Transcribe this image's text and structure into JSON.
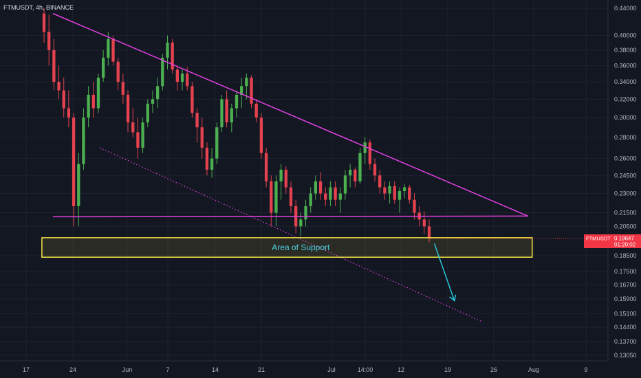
{
  "chart_data": {
    "type": "candlestick",
    "symbol_line": "FTMUSDT, 4h, BINANCE",
    "price_axis": {
      "scale": "log",
      "ticks": [
        "0.44000",
        "0.40000",
        "0.38000",
        "0.36000",
        "0.34000",
        "0.32000",
        "0.30000",
        "0.28000",
        "0.26000",
        "0.24500",
        "0.23000",
        "0.21500",
        "0.20500",
        "0.18500",
        "0.17500",
        "0.16700",
        "0.15900",
        "0.15100",
        "0.14400",
        "0.13700",
        "0.13050"
      ],
      "current_price_label": {
        "symbol": "FTMUSDT",
        "price": "0.19647",
        "countdown": "01:20:02",
        "color": "#f23645"
      }
    },
    "time_axis": {
      "ticks": [
        "17",
        "24",
        "Jun",
        "7",
        "14",
        "21",
        "Jul",
        "14:00",
        "12",
        "19",
        "26",
        "Aug",
        "9"
      ]
    },
    "colors": {
      "up": "#4caf50",
      "down": "#e5424f",
      "trendline": "#e040e0",
      "support_box": "#f5e642",
      "arrow": "#26c6da",
      "grid": "#1e2230"
    },
    "candles_ohlc": [
      [
        0.432,
        0.44,
        0.39,
        0.405
      ],
      [
        0.405,
        0.43,
        0.36,
        0.38
      ],
      [
        0.38,
        0.395,
        0.33,
        0.34
      ],
      [
        0.34,
        0.36,
        0.32,
        0.33
      ],
      [
        0.33,
        0.345,
        0.3,
        0.31
      ],
      [
        0.31,
        0.33,
        0.29,
        0.3
      ],
      [
        0.3,
        0.305,
        0.205,
        0.22
      ],
      [
        0.22,
        0.265,
        0.205,
        0.255
      ],
      [
        0.255,
        0.31,
        0.25,
        0.3
      ],
      [
        0.3,
        0.335,
        0.29,
        0.325
      ],
      [
        0.325,
        0.34,
        0.3,
        0.31
      ],
      [
        0.31,
        0.35,
        0.305,
        0.345
      ],
      [
        0.345,
        0.38,
        0.34,
        0.37
      ],
      [
        0.37,
        0.405,
        0.36,
        0.395
      ],
      [
        0.395,
        0.4,
        0.36,
        0.365
      ],
      [
        0.365,
        0.37,
        0.33,
        0.34
      ],
      [
        0.34,
        0.35,
        0.315,
        0.325
      ],
      [
        0.325,
        0.33,
        0.285,
        0.295
      ],
      [
        0.295,
        0.31,
        0.28,
        0.285
      ],
      [
        0.285,
        0.3,
        0.26,
        0.27
      ],
      [
        0.27,
        0.3,
        0.265,
        0.295
      ],
      [
        0.295,
        0.32,
        0.29,
        0.315
      ],
      [
        0.315,
        0.33,
        0.305,
        0.32
      ],
      [
        0.32,
        0.345,
        0.31,
        0.335
      ],
      [
        0.335,
        0.375,
        0.33,
        0.37
      ],
      [
        0.37,
        0.4,
        0.355,
        0.39
      ],
      [
        0.39,
        0.395,
        0.35,
        0.355
      ],
      [
        0.355,
        0.36,
        0.33,
        0.34
      ],
      [
        0.34,
        0.355,
        0.33,
        0.35
      ],
      [
        0.35,
        0.358,
        0.33,
        0.335
      ],
      [
        0.335,
        0.34,
        0.3,
        0.305
      ],
      [
        0.305,
        0.31,
        0.275,
        0.29
      ],
      [
        0.29,
        0.3,
        0.26,
        0.27
      ],
      [
        0.27,
        0.275,
        0.245,
        0.25
      ],
      [
        0.25,
        0.27,
        0.243,
        0.26
      ],
      [
        0.26,
        0.295,
        0.255,
        0.29
      ],
      [
        0.29,
        0.325,
        0.285,
        0.32
      ],
      [
        0.32,
        0.33,
        0.29,
        0.295
      ],
      [
        0.295,
        0.315,
        0.285,
        0.31
      ],
      [
        0.31,
        0.33,
        0.3,
        0.325
      ],
      [
        0.325,
        0.345,
        0.31,
        0.335
      ],
      [
        0.335,
        0.35,
        0.32,
        0.345
      ],
      [
        0.345,
        0.348,
        0.31,
        0.315
      ],
      [
        0.315,
        0.32,
        0.295,
        0.3
      ],
      [
        0.3,
        0.305,
        0.26,
        0.265
      ],
      [
        0.265,
        0.27,
        0.235,
        0.24
      ],
      [
        0.24,
        0.245,
        0.205,
        0.215
      ],
      [
        0.215,
        0.245,
        0.205,
        0.24
      ],
      [
        0.24,
        0.255,
        0.225,
        0.25
      ],
      [
        0.25,
        0.253,
        0.23,
        0.235
      ],
      [
        0.235,
        0.24,
        0.215,
        0.22
      ],
      [
        0.22,
        0.225,
        0.2,
        0.205
      ],
      [
        0.205,
        0.215,
        0.198,
        0.21
      ],
      [
        0.21,
        0.225,
        0.205,
        0.22
      ],
      [
        0.22,
        0.235,
        0.215,
        0.23
      ],
      [
        0.23,
        0.245,
        0.225,
        0.24
      ],
      [
        0.24,
        0.248,
        0.225,
        0.23
      ],
      [
        0.23,
        0.235,
        0.22,
        0.225
      ],
      [
        0.225,
        0.24,
        0.22,
        0.235
      ],
      [
        0.235,
        0.24,
        0.22,
        0.225
      ],
      [
        0.225,
        0.235,
        0.215,
        0.23
      ],
      [
        0.23,
        0.25,
        0.225,
        0.245
      ],
      [
        0.245,
        0.255,
        0.235,
        0.25
      ],
      [
        0.25,
        0.252,
        0.235,
        0.24
      ],
      [
        0.24,
        0.27,
        0.238,
        0.265
      ],
      [
        0.265,
        0.28,
        0.255,
        0.275
      ],
      [
        0.275,
        0.278,
        0.25,
        0.255
      ],
      [
        0.255,
        0.26,
        0.24,
        0.245
      ],
      [
        0.245,
        0.25,
        0.23,
        0.235
      ],
      [
        0.235,
        0.24,
        0.225,
        0.23
      ],
      [
        0.23,
        0.24,
        0.222,
        0.236
      ],
      [
        0.236,
        0.24,
        0.222,
        0.225
      ],
      [
        0.225,
        0.235,
        0.215,
        0.232
      ],
      [
        0.232,
        0.238,
        0.226,
        0.235
      ],
      [
        0.235,
        0.237,
        0.222,
        0.225
      ],
      [
        0.225,
        0.23,
        0.21,
        0.215
      ],
      [
        0.215,
        0.22,
        0.205,
        0.21
      ],
      [
        0.21,
        0.216,
        0.2,
        0.205
      ],
      [
        0.205,
        0.21,
        0.194,
        0.19647
      ]
    ],
    "drawings": {
      "descending_resistance_line": {
        "from": {
          "x": "2021-05-21",
          "y": 0.432
        },
        "to": {
          "x": "2021-07-31",
          "y": 0.2125
        }
      },
      "horizontal_support_line": {
        "from": {
          "x": "2021-05-21",
          "y": 0.212
        },
        "to": {
          "x": "2021-07-31",
          "y": 0.2125
        }
      },
      "dotted_lower_trendline": {
        "from": {
          "x": "2021-05-28",
          "y": 0.27
        },
        "to": {
          "x": "2021-07-24",
          "y": 0.147
        }
      },
      "support_zone": {
        "x_from": "2021-05-21",
        "x_to": "2021-07-31",
        "y_low": 0.184,
        "y_high": 0.197,
        "label": "Area of Support"
      },
      "projection_arrow": {
        "from": {
          "x": "2021-07-17",
          "y": 0.193
        },
        "to": {
          "x": "2021-07-20",
          "y": 0.158
        }
      }
    }
  }
}
